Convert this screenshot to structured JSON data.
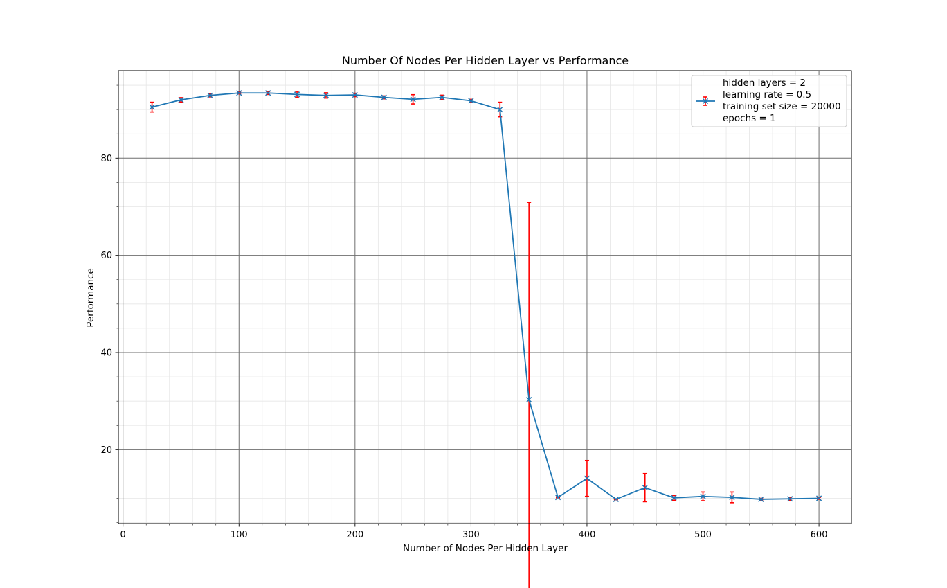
{
  "chart_data": {
    "type": "line",
    "title": "Number Of Nodes Per Hidden Layer vs Performance",
    "xlabel": "Number of Nodes Per Hidden Layer",
    "ylabel": "Performance",
    "xlim": [
      -4,
      628
    ],
    "ylim": [
      4.8,
      98
    ],
    "x_ticks": [
      0,
      100,
      200,
      300,
      400,
      500,
      600
    ],
    "y_ticks": [
      20,
      40,
      60,
      80
    ],
    "grid": true,
    "legend_position": "top-right",
    "legend_lines": [
      "hidden layers = 2",
      "learning rate = 0.5",
      "training set size = 20000",
      "epochs = 1"
    ],
    "colors": {
      "line": "#1f77b4",
      "errorbar": "#ff0000",
      "major_grid": "#6e6e6e",
      "minor_grid": "#e6e6e6"
    },
    "series": [
      {
        "x": [
          25,
          50,
          75,
          100,
          125,
          150,
          175,
          200,
          225,
          250,
          275,
          300,
          325,
          350,
          375,
          400,
          425,
          450,
          475,
          500,
          525,
          550,
          575,
          600
        ],
        "values": [
          90.5,
          92.0,
          92.9,
          93.4,
          93.4,
          93.1,
          92.9,
          93.0,
          92.5,
          92.1,
          92.5,
          91.8,
          90.0,
          30.3,
          10.2,
          14.1,
          9.8,
          12.2,
          10.1,
          10.4,
          10.2,
          9.8,
          9.9,
          10.0
        ],
        "errors": [
          1.0,
          0.45,
          0.3,
          0.2,
          0.3,
          0.65,
          0.55,
          0.35,
          0.3,
          0.95,
          0.45,
          0.3,
          1.5,
          40.6,
          0.1,
          3.7,
          0.1,
          2.9,
          0.5,
          0.9,
          1.1,
          0.2,
          0.3,
          0.2
        ]
      }
    ]
  }
}
